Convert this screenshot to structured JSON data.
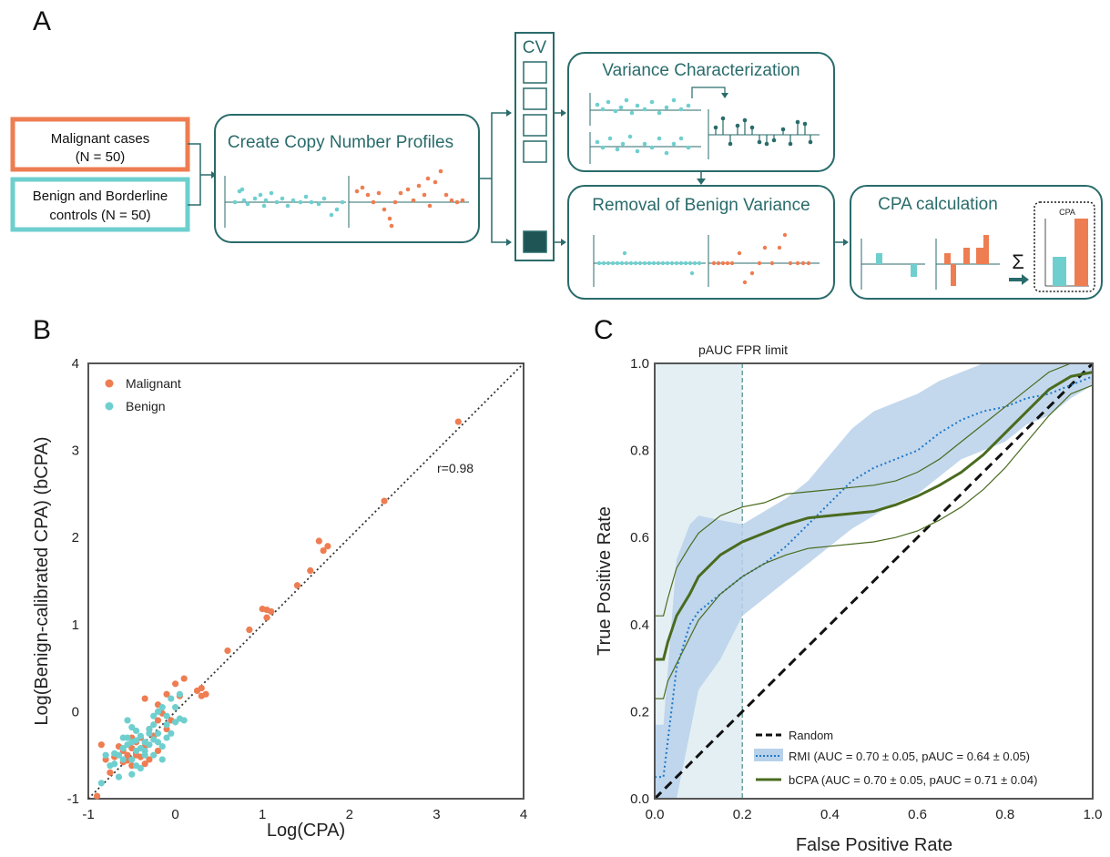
{
  "panel_a": {
    "letter": "A",
    "input_malignant": [
      "Malignant cases",
      "(N = 50)"
    ],
    "input_benign": [
      "Benign and Borderline",
      "controls (N = 50)"
    ],
    "cnp_title": "Create Copy Number Profiles",
    "cv_label": "CV",
    "variance_title": "Variance Characterization",
    "removal_title": "Removal of Benign Variance",
    "cpa_title": "CPA calculation",
    "cpa_small": "CPA",
    "sum_symbol": "Σ",
    "colors": {
      "teal_dark": "#2a6b6b",
      "teal": "#6fcfcf",
      "orange": "#ee7d52"
    }
  },
  "panel_b": {
    "letter": "B",
    "annotation": "r=0.98",
    "chart_data": {
      "type": "scatter",
      "xlabel": "Log(CPA)",
      "ylabel": "Log(Benign-calibrated CPA) (bCPA)",
      "xlim": [
        -1,
        4
      ],
      "ylim": [
        -1,
        4
      ],
      "xticks": [
        "-1",
        "0",
        "1",
        "2",
        "3",
        "4"
      ],
      "yticks": [
        "-1",
        "0",
        "1",
        "2",
        "3",
        "4"
      ],
      "legend_position": "top-left",
      "reference_line": "dotted y = x",
      "series": [
        {
          "name": "Malignant",
          "color": "#ee7d52",
          "points": [
            [
              3.25,
              3.33
            ],
            [
              2.4,
              2.42
            ],
            [
              1.65,
              1.96
            ],
            [
              1.75,
              1.9
            ],
            [
              1.7,
              1.85
            ],
            [
              1.55,
              1.62
            ],
            [
              1.4,
              1.45
            ],
            [
              1.05,
              1.17
            ],
            [
              1.0,
              1.18
            ],
            [
              1.1,
              1.15
            ],
            [
              1.05,
              1.08
            ],
            [
              0.85,
              0.94
            ],
            [
              0.6,
              0.7
            ],
            [
              0.1,
              0.38
            ],
            [
              0.0,
              0.32
            ],
            [
              0.3,
              0.27
            ],
            [
              0.3,
              0.18
            ],
            [
              0.35,
              0.2
            ],
            [
              0.25,
              0.24
            ],
            [
              0.05,
              0.18
            ],
            [
              -0.1,
              0.2
            ],
            [
              -0.2,
              0.08
            ],
            [
              -0.35,
              0.15
            ],
            [
              -0.15,
              -0.02
            ],
            [
              -0.2,
              -0.1
            ],
            [
              -0.05,
              -0.1
            ],
            [
              -0.1,
              -0.2
            ],
            [
              -0.25,
              -0.28
            ],
            [
              -0.4,
              -0.3
            ],
            [
              -0.35,
              -0.4
            ],
            [
              -0.5,
              -0.42
            ],
            [
              -0.6,
              -0.45
            ],
            [
              -0.45,
              -0.5
            ],
            [
              -0.7,
              -0.52
            ],
            [
              -0.4,
              -0.52
            ],
            [
              -0.55,
              -0.56
            ],
            [
              -0.3,
              -0.55
            ],
            [
              -0.5,
              -0.62
            ],
            [
              -0.6,
              -0.58
            ],
            [
              -0.8,
              -0.55
            ],
            [
              -0.75,
              -0.7
            ],
            [
              -0.85,
              -0.38
            ],
            [
              -0.45,
              -0.35
            ],
            [
              -0.2,
              -0.45
            ],
            [
              -0.9,
              -0.97
            ],
            [
              -0.5,
              -0.3
            ],
            [
              -0.35,
              -0.6
            ],
            [
              -0.65,
              -0.4
            ],
            [
              -0.55,
              -0.5
            ],
            [
              -0.3,
              -0.2
            ]
          ]
        },
        {
          "name": "Benign",
          "color": "#6fcfcf",
          "points": [
            [
              -0.85,
              -0.82
            ],
            [
              -0.75,
              -0.62
            ],
            [
              -0.8,
              -0.5
            ],
            [
              -0.7,
              -0.48
            ],
            [
              -0.65,
              -0.5
            ],
            [
              -0.6,
              -0.42
            ],
            [
              -0.55,
              -0.38
            ],
            [
              -0.5,
              -0.35
            ],
            [
              -0.45,
              -0.33
            ],
            [
              -0.4,
              -0.28
            ],
            [
              -0.4,
              -0.42
            ],
            [
              -0.35,
              -0.45
            ],
            [
              -0.3,
              -0.38
            ],
            [
              -0.25,
              -0.32
            ],
            [
              -0.2,
              -0.35
            ],
            [
              -0.15,
              -0.4
            ],
            [
              -0.1,
              -0.3
            ],
            [
              -0.05,
              -0.25
            ],
            [
              0.0,
              -0.12
            ],
            [
              0.05,
              -0.08
            ],
            [
              -0.1,
              -0.05
            ],
            [
              -0.15,
              0.05
            ],
            [
              -0.05,
              0.15
            ],
            [
              0.05,
              0.2
            ],
            [
              -0.2,
              0.0
            ],
            [
              -0.25,
              -0.15
            ],
            [
              -0.3,
              -0.2
            ],
            [
              -0.45,
              -0.22
            ],
            [
              -0.5,
              -0.18
            ],
            [
              -0.55,
              -0.3
            ],
            [
              -0.6,
              -0.55
            ],
            [
              -0.5,
              -0.55
            ],
            [
              -0.45,
              -0.62
            ],
            [
              -0.35,
              -0.5
            ],
            [
              -0.3,
              -0.25
            ],
            [
              -0.2,
              -0.25
            ],
            [
              -0.1,
              -0.15
            ],
            [
              -0.65,
              -0.75
            ],
            [
              -0.5,
              -0.72
            ],
            [
              -0.4,
              -0.65
            ],
            [
              -0.25,
              -0.5
            ],
            [
              -0.15,
              -0.55
            ],
            [
              0.1,
              -0.1
            ],
            [
              -0.55,
              -0.1
            ],
            [
              -0.7,
              -0.6
            ],
            [
              -0.35,
              -0.35
            ],
            [
              -0.45,
              -0.45
            ],
            [
              -0.25,
              -0.05
            ],
            [
              0.0,
              0.05
            ],
            [
              -0.6,
              -0.3
            ]
          ]
        }
      ]
    }
  },
  "panel_c": {
    "letter": "C",
    "annotation": "pAUC FPR limit",
    "chart_data": {
      "type": "line",
      "xlabel": "False Positive Rate",
      "ylabel": "True Positive Rate",
      "xlim": [
        0,
        1
      ],
      "ylim": [
        0,
        1
      ],
      "xticks": [
        "0.0",
        "0.2",
        "0.4",
        "0.6",
        "0.8",
        "1.0"
      ],
      "yticks": [
        "0.0",
        "0.2",
        "0.4",
        "0.6",
        "0.8",
        "1.0"
      ],
      "pauc_limit_x": 0.2,
      "legend_position": "bottom-right",
      "series": [
        {
          "name": "Random",
          "color": "#111111",
          "style": "dashed",
          "x": [
            0,
            1
          ],
          "y": [
            0,
            1
          ]
        },
        {
          "name": "RMI (AUC = 0.70 ± 0.05, pAUC = 0.64 ± 0.05)",
          "color": "#1f78c8",
          "band_color": "#b8d1ea",
          "style": "dotted",
          "x": [
            0,
            0.02,
            0.05,
            0.08,
            0.1,
            0.15,
            0.2,
            0.25,
            0.3,
            0.35,
            0.4,
            0.45,
            0.5,
            0.55,
            0.6,
            0.65,
            0.7,
            0.75,
            0.8,
            0.85,
            0.9,
            0.95,
            1.0
          ],
          "y": [
            0.05,
            0.05,
            0.3,
            0.4,
            0.43,
            0.47,
            0.51,
            0.54,
            0.58,
            0.63,
            0.68,
            0.73,
            0.76,
            0.78,
            0.8,
            0.84,
            0.87,
            0.89,
            0.9,
            0.92,
            0.93,
            0.95,
            0.97
          ],
          "y_upper": [
            0.17,
            0.17,
            0.55,
            0.63,
            0.65,
            0.64,
            0.63,
            0.66,
            0.69,
            0.73,
            0.79,
            0.85,
            0.89,
            0.91,
            0.93,
            0.96,
            0.98,
            1.0,
            1.0,
            1.0,
            1.0,
            1.0,
            1.0
          ],
          "y_lower": [
            0.0,
            0.0,
            0.0,
            0.15,
            0.25,
            0.32,
            0.42,
            0.46,
            0.5,
            0.54,
            0.58,
            0.62,
            0.65,
            0.68,
            0.7,
            0.74,
            0.78,
            0.8,
            0.82,
            0.86,
            0.88,
            0.92,
            0.95
          ]
        },
        {
          "name": "bCPA (AUC = 0.70 ± 0.05, pAUC = 0.71 ± 0.04)",
          "color": "#4a6b1f",
          "style": "solid",
          "x": [
            0,
            0.02,
            0.03,
            0.05,
            0.08,
            0.1,
            0.15,
            0.2,
            0.25,
            0.3,
            0.35,
            0.4,
            0.45,
            0.5,
            0.55,
            0.6,
            0.65,
            0.7,
            0.75,
            0.8,
            0.85,
            0.9,
            0.95,
            1.0
          ],
          "y": [
            0.32,
            0.32,
            0.36,
            0.42,
            0.47,
            0.51,
            0.56,
            0.59,
            0.61,
            0.63,
            0.645,
            0.65,
            0.655,
            0.66,
            0.675,
            0.695,
            0.72,
            0.75,
            0.79,
            0.84,
            0.89,
            0.94,
            0.97,
            0.98
          ],
          "y_upper": [
            0.42,
            0.42,
            0.46,
            0.53,
            0.58,
            0.61,
            0.65,
            0.67,
            0.68,
            0.7,
            0.705,
            0.71,
            0.715,
            0.72,
            0.73,
            0.75,
            0.78,
            0.82,
            0.86,
            0.9,
            0.94,
            0.98,
            1.0,
            1.0
          ],
          "y_lower": [
            0.23,
            0.23,
            0.27,
            0.31,
            0.37,
            0.41,
            0.47,
            0.51,
            0.54,
            0.56,
            0.575,
            0.58,
            0.585,
            0.59,
            0.6,
            0.615,
            0.64,
            0.67,
            0.71,
            0.76,
            0.82,
            0.88,
            0.93,
            0.95
          ]
        }
      ]
    }
  }
}
